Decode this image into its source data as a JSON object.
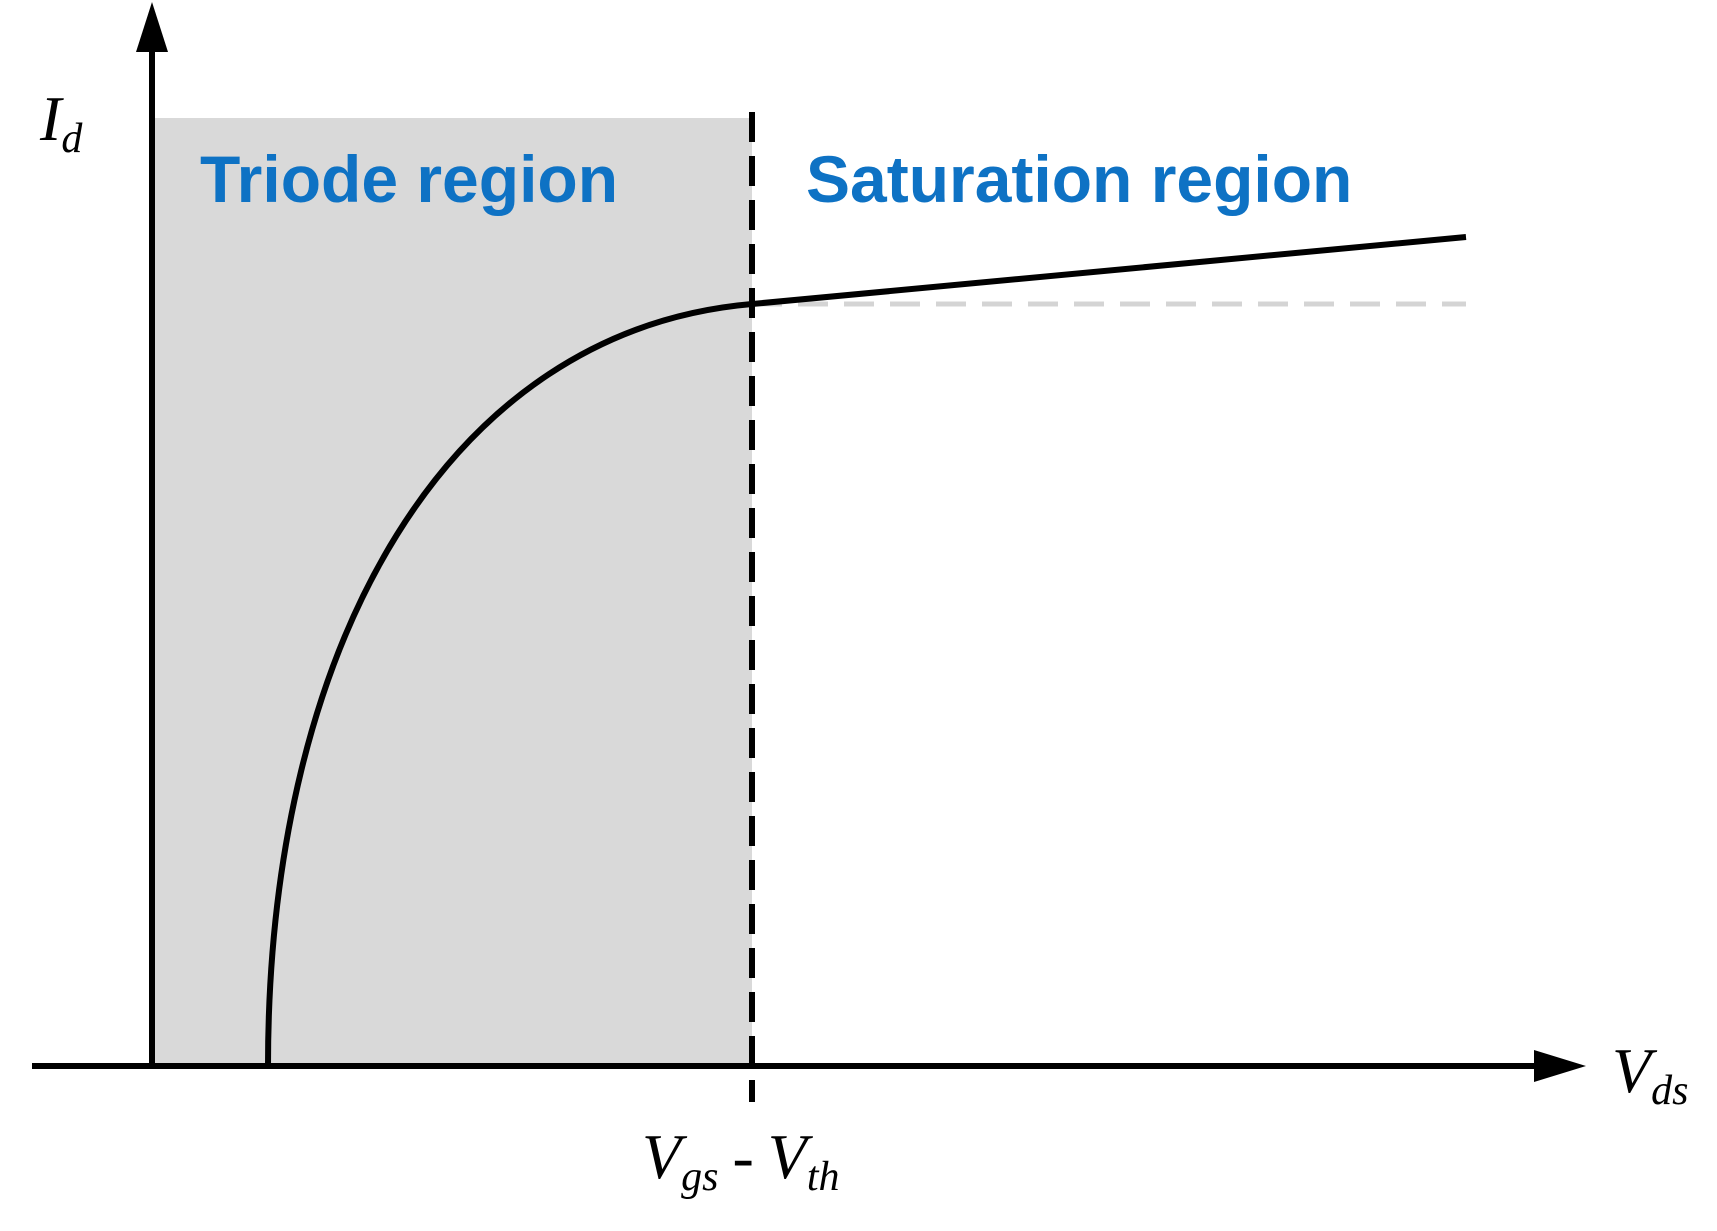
{
  "axes": {
    "y_label": {
      "main": "I",
      "sub": "d"
    },
    "x_label": {
      "main": "V",
      "sub": "ds"
    }
  },
  "regions": {
    "triode_label": "Triode region",
    "saturation_label": "Saturation region"
  },
  "boundary_label": {
    "term1_main": "V",
    "term1_sub": "gs",
    "minus": "-",
    "term2_main": "V",
    "term2_sub": "th"
  },
  "colors": {
    "region_label": "#0e72c4",
    "triode_fill": "#d9d9d9",
    "axis": "#000000",
    "reference_dash": "#d4d4d4"
  }
}
